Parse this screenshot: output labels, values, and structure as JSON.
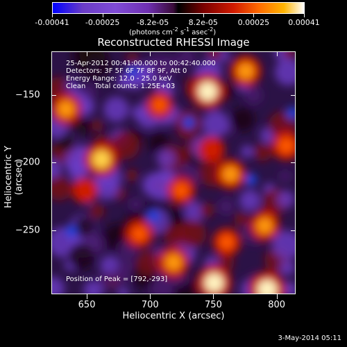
{
  "colorbar": {
    "ticks": [
      "-0.00041",
      "-0.00025",
      "-8.2e-05",
      "8.2e-05",
      "0.00025",
      "0.00041"
    ],
    "units_main": "(photons cm",
    "units_sup1": "-2",
    "units_mid": " s",
    "units_sup2": "-1",
    "units_end": " asec",
    "units_sup3": "-2",
    "units_close": ")"
  },
  "title": "Reconstructed RHESSI Image",
  "annotations": {
    "line1": "25-Apr-2012 00:41:00.000 to 00:42:40.000",
    "line2": "Detectors: 3F 5F 6F 7F 8F 9F, Att 0",
    "line3": "Energy Range: 12.0 - 25.0 keV",
    "line4": "Clean    Total counts: 1.25E+03",
    "peak": "Position of Peak = [792,-293]"
  },
  "chart_data": {
    "type": "heatmap",
    "title": "Reconstructed RHESSI Image",
    "xlabel": "Heliocentric X (arcsec)",
    "ylabel": "Heliocentric Y (arcsec)",
    "xlim": [
      622,
      815
    ],
    "ylim": [
      -297,
      -118
    ],
    "xticks": [
      "650",
      "700",
      "750",
      "800"
    ],
    "yticks": [
      "-150",
      "-200",
      "-250"
    ],
    "colorscale_range": [
      -0.00041,
      0.00041
    ],
    "peak_position": [
      792,
      -293
    ],
    "hotspots": [
      {
        "x": 633,
        "y": -160,
        "level": 0.75
      },
      {
        "x": 648,
        "y": -220,
        "level": 0.5
      },
      {
        "x": 661,
        "y": -197,
        "level": 0.9
      },
      {
        "x": 691,
        "y": -252,
        "level": 0.6
      },
      {
        "x": 707,
        "y": -157,
        "level": 0.55
      },
      {
        "x": 718,
        "y": -273,
        "level": 0.75
      },
      {
        "x": 724,
        "y": -220,
        "level": 0.6
      },
      {
        "x": 745,
        "y": -147,
        "level": 0.95
      },
      {
        "x": 748,
        "y": -190,
        "level": 0.5
      },
      {
        "x": 750,
        "y": -288,
        "level": 0.95
      },
      {
        "x": 760,
        "y": -258,
        "level": 0.6
      },
      {
        "x": 763,
        "y": -208,
        "level": 0.7
      },
      {
        "x": 775,
        "y": -132,
        "level": 0.75
      },
      {
        "x": 790,
        "y": -246,
        "level": 0.7
      },
      {
        "x": 792,
        "y": -293,
        "level": 1.0
      },
      {
        "x": 807,
        "y": -187,
        "level": 0.65
      }
    ],
    "coldspots": [
      {
        "x": 637,
        "y": -250
      },
      {
        "x": 650,
        "y": -226
      },
      {
        "x": 686,
        "y": -132
      },
      {
        "x": 702,
        "y": -239
      },
      {
        "x": 730,
        "y": -170
      },
      {
        "x": 779,
        "y": -212
      },
      {
        "x": 812,
        "y": -163
      }
    ]
  },
  "footer": "3-May-2014 05:11"
}
